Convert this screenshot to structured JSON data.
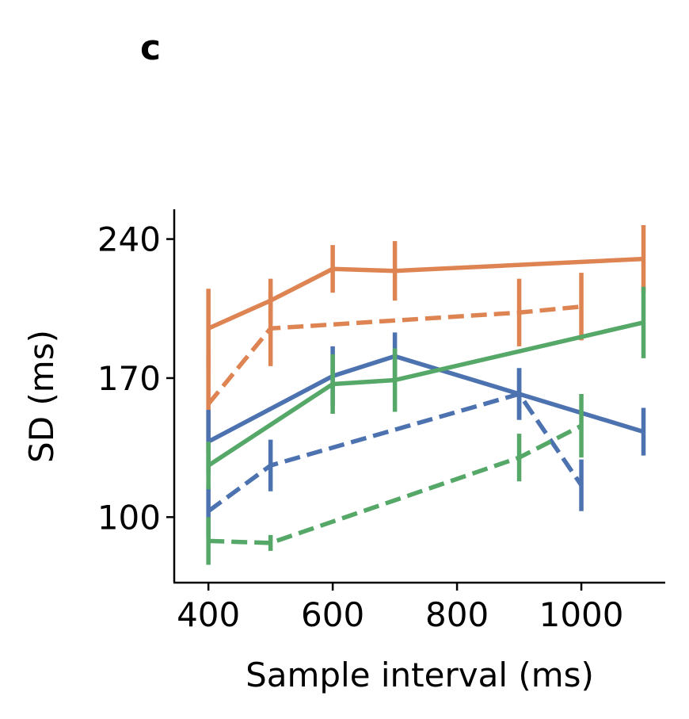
{
  "panel_label": "c",
  "chart_data": {
    "type": "line",
    "xlabel": "Sample interval (ms)",
    "ylabel": "SD (ms)",
    "xlim": [
      345,
      1135
    ],
    "ylim": [
      67,
      255
    ],
    "xticks": [
      400,
      600,
      800,
      1000
    ],
    "xtick_labels": [
      "400",
      "600",
      "800",
      "1000"
    ],
    "yticks": [
      100,
      170,
      240
    ],
    "ytick_labels": [
      "100",
      "170",
      "240"
    ],
    "grid": false,
    "legend": "none",
    "series": [
      {
        "color": "#dd8452",
        "linestyle": "solid",
        "x": [
          400,
          500,
          600,
          700,
          1100
        ],
        "y": [
          195,
          209,
          225,
          224,
          230
        ],
        "err": [
          20,
          11,
          12,
          15,
          17
        ]
      },
      {
        "color": "#dd8452",
        "linestyle": "dashed",
        "x": [
          400,
          500,
          900,
          1000
        ],
        "y": [
          157,
          195,
          203,
          206
        ],
        "err": [
          25,
          19,
          17,
          17
        ]
      },
      {
        "color": "#4c72b0",
        "linestyle": "solid",
        "x": [
          400,
          600,
          700,
          900,
          1100
        ],
        "y": [
          138,
          171,
          181,
          162,
          143
        ],
        "err": [
          16,
          15,
          12,
          13,
          12
        ]
      },
      {
        "color": "#4c72b0",
        "linestyle": "dashed",
        "x": [
          400,
          500,
          900,
          1000
        ],
        "y": [
          103,
          126,
          162,
          116
        ],
        "err": [
          13,
          13,
          13,
          13
        ]
      },
      {
        "color": "#55a868",
        "linestyle": "solid",
        "x": [
          400,
          600,
          700,
          1100
        ],
        "y": [
          126,
          167,
          169,
          198
        ],
        "err": [
          12,
          15,
          16,
          18
        ]
      },
      {
        "color": "#55a868",
        "linestyle": "dashed",
        "x": [
          400,
          500,
          900,
          1000
        ],
        "y": [
          88,
          87,
          130,
          146
        ],
        "err": [
          12,
          4,
          12,
          16
        ]
      }
    ]
  }
}
